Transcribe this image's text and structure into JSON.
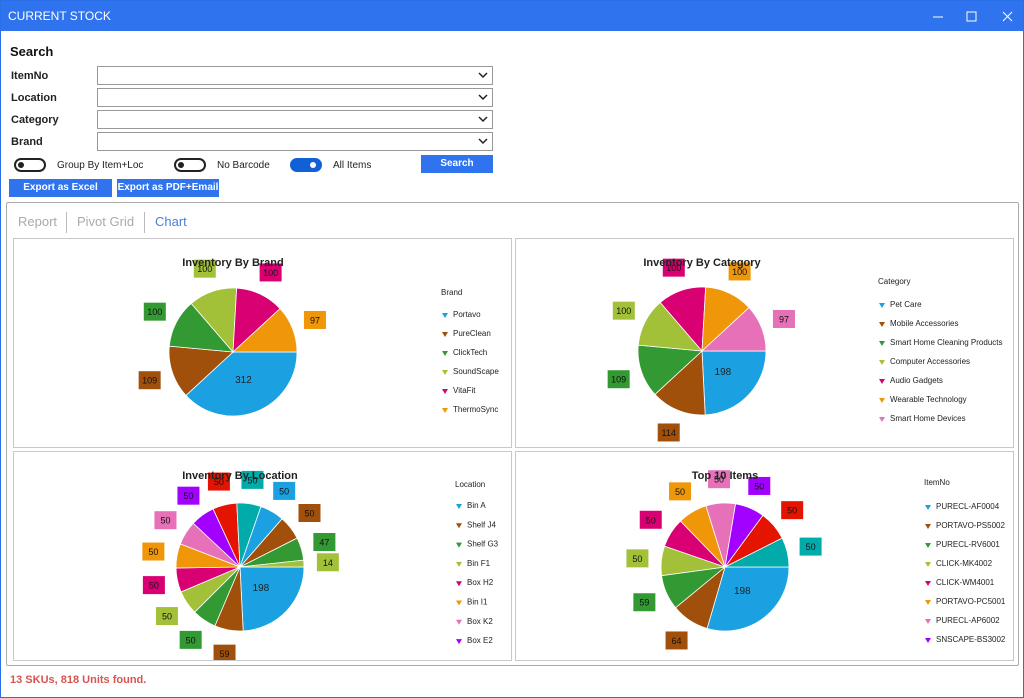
{
  "window": {
    "title": "CURRENT STOCK"
  },
  "search": {
    "title": "Search",
    "fields": [
      "ItemNo",
      "Location",
      "Category",
      "Brand"
    ],
    "toggles": [
      {
        "label": "Group By Item+Loc",
        "on": false
      },
      {
        "label": "No Barcode",
        "on": false
      },
      {
        "label": "All Items",
        "on": true
      }
    ],
    "button": "Search"
  },
  "export_buttons": [
    "Export as Excel",
    "Export as PDF+Email"
  ],
  "tabs": [
    "Report",
    "Pivot Grid",
    "Chart"
  ],
  "active_tab": 2,
  "chart_data": [
    {
      "type": "pie",
      "title": "Inventory By Brand",
      "legend_title": "Brand",
      "categories": [
        "Portavo",
        "PureClean",
        "ClickTech",
        "SoundScape",
        "VitaFit",
        "ThermoSync"
      ],
      "values": [
        312,
        109,
        100,
        100,
        100,
        97
      ],
      "colors": [
        "#1ba1e2",
        "#a0500a",
        "#339933",
        "#a2c139",
        "#d80073",
        "#f09609"
      ]
    },
    {
      "type": "pie",
      "title": "Inventory By Category",
      "legend_title": "Category",
      "categories": [
        "Pet Care",
        "Mobile Accessories",
        "Smart Home Cleaning Products",
        "Computer Accessories",
        "Audio Gadgets",
        "Wearable Technology",
        "Smart Home Devices"
      ],
      "values": [
        198,
        114,
        109,
        100,
        100,
        100,
        97
      ],
      "colors": [
        "#1ba1e2",
        "#a0500a",
        "#339933",
        "#a2c139",
        "#d80073",
        "#f09609",
        "#e671b8"
      ]
    },
    {
      "type": "pie",
      "title": "Inventory By Location",
      "legend_title": "Location",
      "categories": [
        "Bin A",
        "Shelf J4",
        "Shelf G3",
        "Bin F1",
        "Box H2",
        "Bin I1",
        "Box K2",
        "Box E2",
        null,
        null,
        null,
        null,
        null,
        null
      ],
      "values": [
        198,
        59,
        50,
        50,
        50,
        50,
        50,
        50,
        50,
        50,
        50,
        50,
        47,
        14
      ],
      "colors": [
        "#1ba1e2",
        "#a0500a",
        "#339933",
        "#a2c139",
        "#d80073",
        "#f09609",
        "#e671b8",
        "#a200ff",
        "#e51400",
        "#00aba9",
        "#1ba1e2",
        "#a0500a",
        "#339933",
        "#a2c139"
      ]
    },
    {
      "type": "pie",
      "title": "Top 10 Items",
      "legend_title": "ItemNo",
      "categories": [
        "PURECL-AF0004",
        "PORTAVO-PS5002",
        "PURECL-RV6001",
        "CLICK-MK4002",
        "CLICK-WM4001",
        "PORTAVO-PC5001",
        "PURECL-AP6002",
        "SNSCAPE-BS3002",
        null,
        null
      ],
      "values": [
        198,
        64,
        59,
        50,
        50,
        50,
        50,
        50,
        50,
        50
      ],
      "colors": [
        "#1ba1e2",
        "#a0500a",
        "#339933",
        "#a2c139",
        "#d80073",
        "#f09609",
        "#e671b8",
        "#a200ff",
        "#e51400",
        "#00aba9"
      ]
    }
  ],
  "status": "13 SKUs, 818 Units found."
}
